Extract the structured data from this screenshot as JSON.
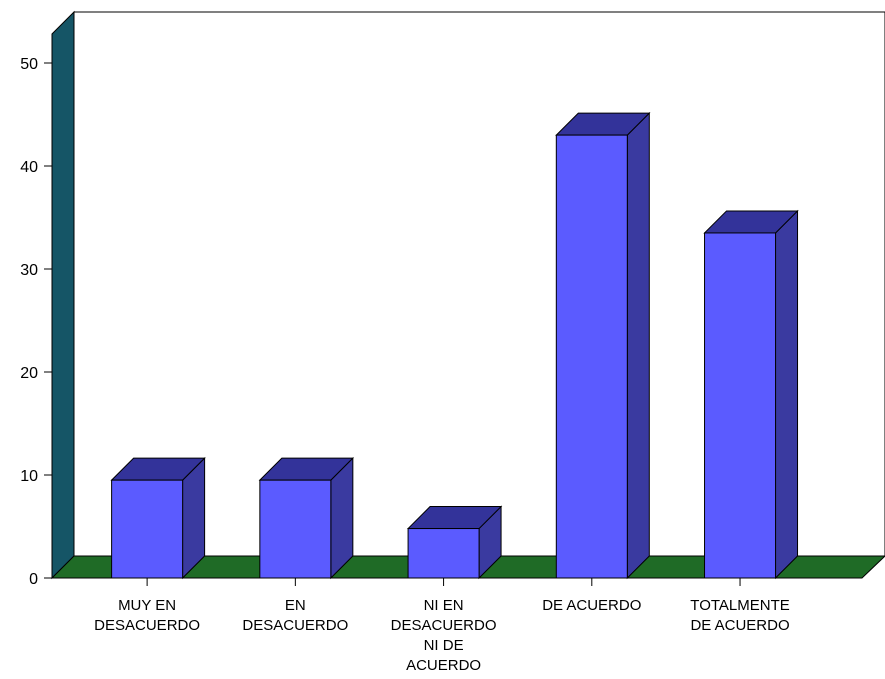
{
  "chart_data": {
    "type": "bar",
    "title": "",
    "xlabel": "",
    "ylabel": "",
    "ylim": [
      0,
      50
    ],
    "y_ticks": [
      0,
      10,
      20,
      30,
      40,
      50
    ],
    "categories": [
      [
        "MUY EN",
        "DESACUERDO"
      ],
      [
        "EN",
        "DESACUERDO"
      ],
      [
        "NI EN",
        "DESACUERDO",
        "NI DE",
        "ACUERDO"
      ],
      [
        "DE ACUERDO"
      ],
      [
        "TOTALMENTE",
        "DE ACUERDO"
      ]
    ],
    "values": [
      9.5,
      9.5,
      4.8,
      43,
      33.5
    ],
    "legend": "none",
    "grid": false,
    "style_3d": true,
    "colors": {
      "bar_front": "#5b5bff",
      "bar_top": "#33339a",
      "bar_side": "#3a3aa0",
      "back_wall": "#ffffff",
      "side_wall": "#155566",
      "floor": "#1f6b26",
      "outline": "#000000"
    }
  }
}
